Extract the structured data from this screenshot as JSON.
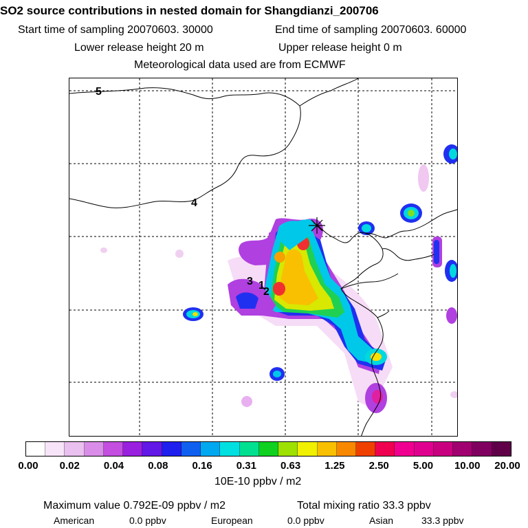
{
  "header": {
    "title": "SO2 source contributions in nested domain for Shangdianzi_200706",
    "start_time": "Start time of sampling 20070603. 30000",
    "end_time": "End time of sampling 20070603. 60000",
    "lower_release": "Lower release height   20 m",
    "upper_release": "Upper release height    0 m",
    "met_data": "Meteorological data used are from ECMWF"
  },
  "map": {
    "labels": [
      "5",
      "4",
      "3",
      "1",
      "2"
    ],
    "station_marker": "star-marker"
  },
  "legend": {
    "colors": [
      "#ffffff",
      "#f8e4f8",
      "#eac0f0",
      "#d98de8",
      "#c34ee0",
      "#9a20e0",
      "#6218e6",
      "#2020ee",
      "#1060f0",
      "#00a8f0",
      "#00e0e0",
      "#00e090",
      "#10d020",
      "#9ee000",
      "#f0f000",
      "#f8c000",
      "#f88800",
      "#f04000",
      "#f00050",
      "#f00090",
      "#e00090",
      "#c80080",
      "#a00070",
      "#800060",
      "#600048"
    ],
    "tick_labels": [
      "0.00",
      "0.02",
      "0.04",
      "0.08",
      "0.16",
      "0.31",
      "0.63",
      "1.25",
      "2.50",
      "5.00",
      "10.00",
      "20.00"
    ],
    "unit": "10E-10 ppbv / m2"
  },
  "summary": {
    "max_value": "Maximum value  0.792E-09 ppbv / m2",
    "total_mixing": "Total mixing ratio      33.3 ppbv",
    "american_label": "American",
    "american_value": "0.0 ppbv",
    "european_label": "European",
    "european_value": "0.0 ppbv",
    "asian_label": "Asian",
    "asian_value": "33.3 ppbv"
  }
}
